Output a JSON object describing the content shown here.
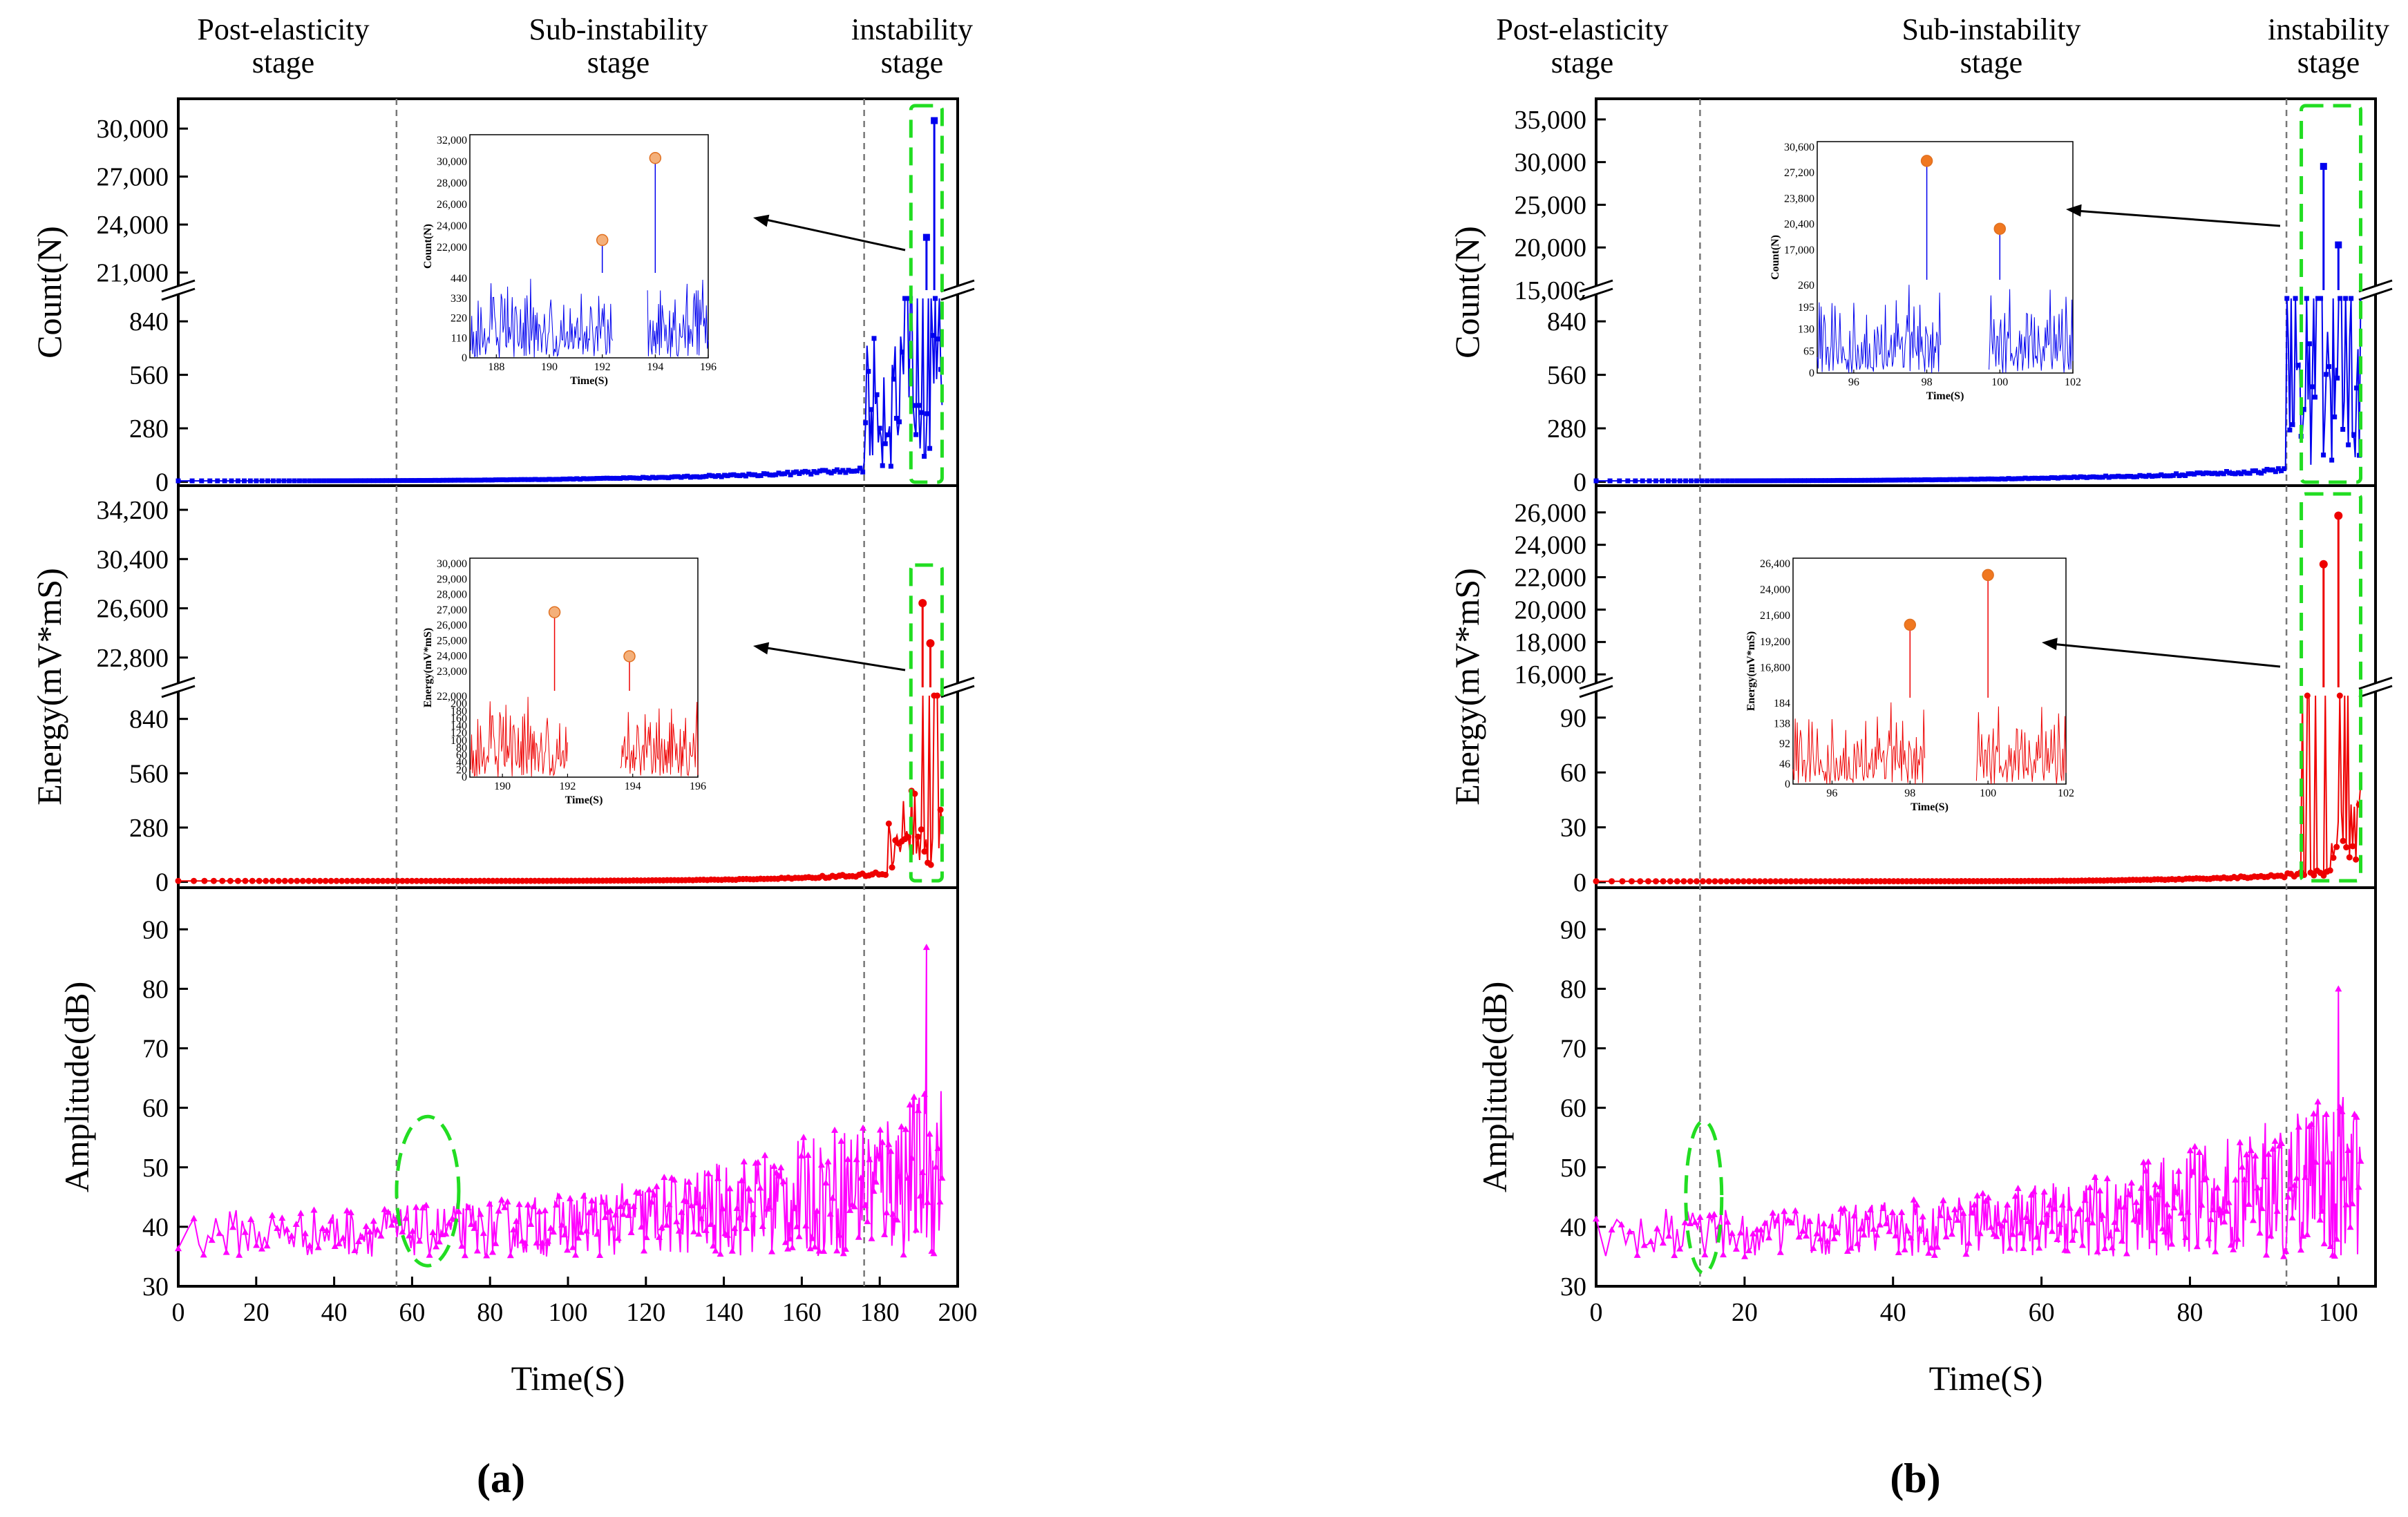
{
  "figure": {
    "caption_a": "(a)",
    "caption_b": "(b)"
  },
  "chart_data": [
    {
      "type": "line",
      "panel": "a",
      "stages": [
        {
          "line1": "Post-elasticity",
          "line2": "stage"
        },
        {
          "line1": "Sub-instability",
          "line2": "stage"
        },
        {
          "line1": "instability",
          "line2": "stage"
        }
      ],
      "stage_boundaries": [
        56,
        176
      ],
      "highlight_window": [
        188,
        196
      ],
      "xlabel": "Time(S)",
      "xlim": [
        0,
        200
      ],
      "x_ticks": [
        "0",
        "20",
        "40",
        "60",
        "80",
        "100",
        "120",
        "140",
        "160",
        "180",
        "200"
      ],
      "count": {
        "ylabel": "Count(N)",
        "color": "#0000ee",
        "upper_ticks": [
          "21,000",
          "24,000",
          "27,000",
          "30,000"
        ],
        "upper_lim": [
          19900,
          31000
        ],
        "lower_ticks": [
          "0",
          "280",
          "560",
          "840"
        ],
        "lower_lim": [
          -20,
          960
        ],
        "peaks": [
          {
            "t": 192,
            "v": 23200
          },
          {
            "t": 194,
            "v": 30500
          }
        ],
        "inset": {
          "xlabel": "Time(S)",
          "ylabel": "Count(N)",
          "x_ticks": [
            "188",
            "190",
            "192",
            "194",
            "196"
          ],
          "upper_ticks": [
            "22,000",
            "24,000",
            "26,000",
            "28,000",
            "30,000",
            "32,000"
          ],
          "lower_ticks": [
            "0",
            "110",
            "220",
            "330",
            "440"
          ],
          "peaks": [
            {
              "t": 192,
              "v": 23000
            },
            {
              "t": 194,
              "v": 30500
            }
          ]
        }
      },
      "energy": {
        "ylabel": "Energy(mV*mS)",
        "color": "#ee0000",
        "upper_ticks": [
          "22,800",
          "26,600",
          "30,400",
          "34,200"
        ],
        "upper_lim": [
          20500,
          35000
        ],
        "lower_ticks": [
          "0",
          "280",
          "560",
          "840"
        ],
        "lower_lim": [
          -30,
          960
        ],
        "peaks": [
          {
            "t": 191,
            "v": 27000
          },
          {
            "t": 193,
            "v": 23900
          }
        ],
        "inset": {
          "xlabel": "Time(S)",
          "ylabel": "Energy(mV*mS)",
          "x_ticks": [
            "190",
            "192",
            "194",
            "196"
          ],
          "upper_ticks": [
            "23,000",
            "24,000",
            "25,000",
            "26,000",
            "27,000",
            "28,000",
            "29,000",
            "30,000"
          ],
          "lower_ticks": [
            "0",
            "20",
            "40",
            "60",
            "80",
            "100",
            "120",
            "140",
            "160",
            "180",
            "200",
            "22,000"
          ],
          "peaks": [
            {
              "t": 191.6,
              "v": 27000
            },
            {
              "t": 193.9,
              "v": 24200
            }
          ]
        }
      },
      "amplitude": {
        "ylabel": "Amplitude(dB)",
        "color": "#ff00ff",
        "y_ticks": [
          "30",
          "40",
          "50",
          "60",
          "70",
          "80",
          "90"
        ],
        "ylim": [
          30,
          97
        ],
        "peak": {
          "t": 192,
          "v": 87
        }
      }
    },
    {
      "type": "line",
      "panel": "b",
      "stages": [
        {
          "line1": "Post-elasticity",
          "line2": "stage"
        },
        {
          "line1": "Sub-instability",
          "line2": "stage"
        },
        {
          "line1": "instability",
          "line2": "stage"
        }
      ],
      "stage_boundaries": [
        14,
        93
      ],
      "highlight_window": [
        95,
        103
      ],
      "xlabel": "Time(S)",
      "xlim": [
        0,
        105
      ],
      "x_ticks": [
        "0",
        "20",
        "40",
        "60",
        "80",
        "100"
      ],
      "count": {
        "ylabel": "Count(N)",
        "color": "#0000ee",
        "upper_ticks": [
          "15,000",
          "20,000",
          "25,000",
          "30,000",
          "35,000"
        ],
        "upper_lim": [
          15000,
          35800
        ],
        "lower_ticks": [
          "0",
          "280",
          "560",
          "840"
        ],
        "lower_lim": [
          -20,
          960
        ],
        "peaks": [
          {
            "t": 98,
            "v": 29500
          },
          {
            "t": 100,
            "v": 20300
          }
        ],
        "inset": {
          "xlabel": "Time(S)",
          "ylabel": "Count(N)",
          "x_ticks": [
            "96",
            "98",
            "100",
            "102"
          ],
          "upper_ticks": [
            "17,000",
            "20,400",
            "23,800",
            "27,200",
            "30,600"
          ],
          "lower_ticks": [
            "0",
            "65",
            "130",
            "195",
            "260"
          ],
          "peaks": [
            {
              "t": 98,
              "v": 29000
            },
            {
              "t": 100,
              "v": 20200
            }
          ]
        }
      },
      "energy": {
        "ylabel": "Energy(mV*mS)",
        "color": "#ee0000",
        "upper_ticks": [
          "16,000",
          "18,000",
          "20,000",
          "22,000",
          "24,000",
          "26,000"
        ],
        "upper_lim": [
          15200,
          26800
        ],
        "lower_ticks": [
          "0",
          "30",
          "60",
          "90"
        ],
        "lower_lim": [
          -3,
          102
        ],
        "peaks": [
          {
            "t": 98,
            "v": 22800
          },
          {
            "t": 100,
            "v": 25800
          }
        ],
        "inset": {
          "xlabel": "Time(S)",
          "ylabel": "Energy(mV*mS)",
          "x_ticks": [
            "96",
            "98",
            "100",
            "102"
          ],
          "upper_ticks": [
            "16,800",
            "19,200",
            "21,600",
            "24,000",
            "26,400"
          ],
          "lower_ticks": [
            "0",
            "46",
            "92",
            "138",
            "184"
          ],
          "peaks": [
            {
              "t": 98,
              "v": 21000
            },
            {
              "t": 100,
              "v": 25500
            }
          ]
        }
      },
      "amplitude": {
        "ylabel": "Amplitude(dB)",
        "color": "#ff00ff",
        "y_ticks": [
          "30",
          "40",
          "50",
          "60",
          "70",
          "80",
          "90"
        ],
        "ylim": [
          30,
          97
        ],
        "peak": {
          "t": 100,
          "v": 80
        }
      }
    }
  ]
}
